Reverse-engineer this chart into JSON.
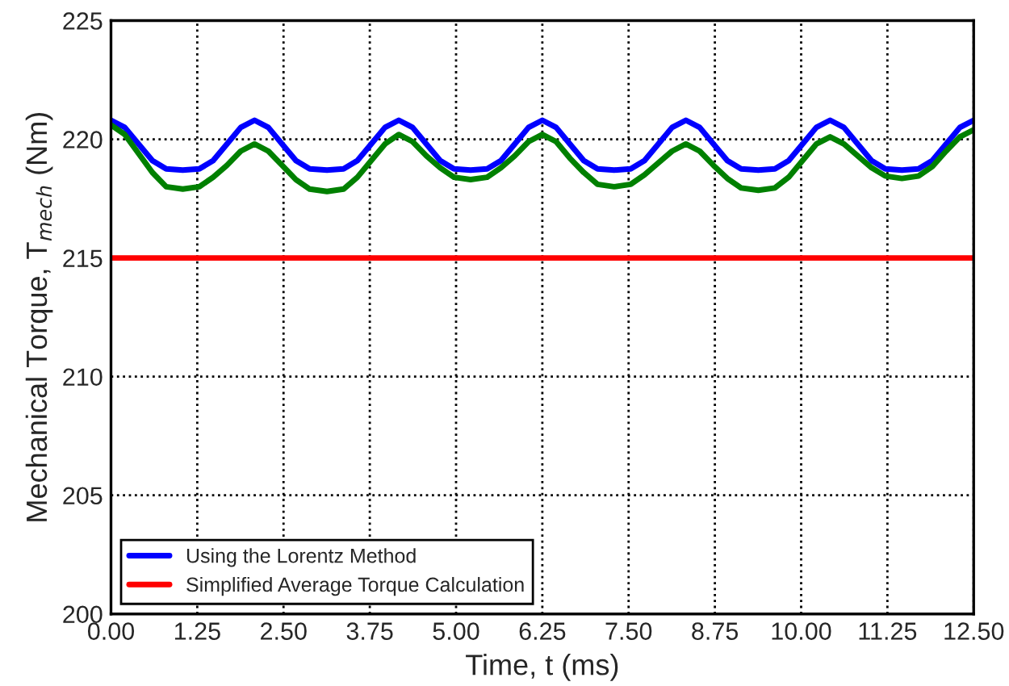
{
  "chart_data": {
    "type": "line",
    "xlabel": "Time, t (ms)",
    "ylabel": "Mechanical Torque, T$_{mech}$ (Nm)",
    "xlim": [
      0,
      12.5
    ],
    "ylim": [
      200,
      225
    ],
    "xticks": [
      {
        "value": 0,
        "label": "0.00"
      },
      {
        "value": 1.25,
        "label": "1.25"
      },
      {
        "value": 2.5,
        "label": "2.50"
      },
      {
        "value": 3.75,
        "label": "3.75"
      },
      {
        "value": 5,
        "label": "5.00"
      },
      {
        "value": 6.25,
        "label": "6.25"
      },
      {
        "value": 7.5,
        "label": "7.50"
      },
      {
        "value": 8.75,
        "label": "8.75"
      },
      {
        "value": 10,
        "label": "10.00"
      },
      {
        "value": 11.25,
        "label": "11.25"
      },
      {
        "value": 12.5,
        "label": "12.50"
      }
    ],
    "yticks": [
      200,
      205,
      210,
      215,
      220,
      225
    ],
    "grid": true,
    "legend": "bottom left",
    "line_style": "solid",
    "x": [
      0,
      0.2,
      0.4,
      0.6,
      0.8,
      1.04,
      1.28,
      1.48,
      1.68,
      1.88,
      2.08,
      2.28,
      2.48,
      2.68,
      2.88,
      3.13,
      3.37,
      3.57,
      3.77,
      3.97,
      4.17,
      4.37,
      4.57,
      4.77,
      4.97,
      5.21,
      5.45,
      5.65,
      5.85,
      6.05,
      6.25,
      6.45,
      6.65,
      6.85,
      7.05,
      7.29,
      7.53,
      7.73,
      7.93,
      8.13,
      8.33,
      8.53,
      8.73,
      8.93,
      9.13,
      9.38,
      9.62,
      9.82,
      10.02,
      10.22,
      10.42,
      10.62,
      10.82,
      11.02,
      11.22,
      11.46,
      11.7,
      11.9,
      12.1,
      12.3,
      12.5
    ],
    "series": [
      {
        "name": "Using the Lorentz Method",
        "color": "#0000ff",
        "values": [
          220.8,
          220.5,
          219.8,
          219.1,
          218.75,
          218.7,
          218.75,
          219.1,
          219.8,
          220.5,
          220.8,
          220.5,
          219.8,
          219.1,
          218.75,
          218.7,
          218.75,
          219.1,
          219.8,
          220.5,
          220.8,
          220.5,
          219.8,
          219.1,
          218.75,
          218.7,
          218.75,
          219.1,
          219.8,
          220.5,
          220.8,
          220.5,
          219.8,
          219.1,
          218.75,
          218.7,
          218.75,
          219.1,
          219.8,
          220.5,
          220.8,
          220.5,
          219.8,
          219.1,
          218.75,
          218.7,
          218.75,
          219.1,
          219.8,
          220.5,
          220.8,
          220.5,
          219.8,
          219.1,
          218.75,
          218.7,
          218.75,
          219.1,
          219.8,
          220.5,
          220.8
        ]
      },
      {
        "color": "#008000",
        "values": [
          220.6,
          220.2,
          219.4,
          218.6,
          218.0,
          217.9,
          218.0,
          218.4,
          218.9,
          219.5,
          219.8,
          219.5,
          218.9,
          218.3,
          217.9,
          217.8,
          217.9,
          218.4,
          219.1,
          219.8,
          220.2,
          219.9,
          219.3,
          218.8,
          218.4,
          218.3,
          218.4,
          218.8,
          219.3,
          219.9,
          220.2,
          219.9,
          219.2,
          218.6,
          218.1,
          218.0,
          218.1,
          218.5,
          219.0,
          219.5,
          219.8,
          219.5,
          218.9,
          218.35,
          217.95,
          217.85,
          217.95,
          218.4,
          219.1,
          219.8,
          220.1,
          219.8,
          219.3,
          218.8,
          218.45,
          218.35,
          218.45,
          218.85,
          219.5,
          220.1,
          220.4
        ]
      },
      {
        "name": "Simplified Average Torque Calculation",
        "color": "#ff0000",
        "x": [
          0,
          12.5
        ],
        "values": [
          215,
          215
        ]
      }
    ]
  }
}
